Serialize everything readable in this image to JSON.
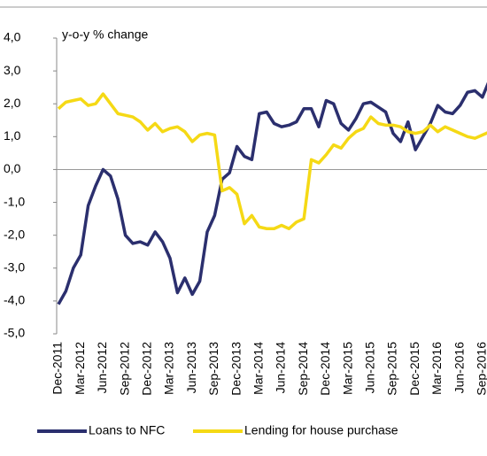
{
  "chart_data": {
    "type": "line",
    "y_label": "y-o-y % change",
    "categories": [
      "Dec-2011",
      null,
      null,
      "Mar-2012",
      null,
      null,
      "Jun-2012",
      null,
      null,
      "Sep-2012",
      null,
      null,
      "Dec-2012",
      null,
      null,
      "Mar-2013",
      null,
      null,
      "Jun-2013",
      null,
      null,
      "Sep-2013",
      null,
      null,
      "Dec-2013",
      null,
      null,
      "Mar-2014",
      null,
      null,
      "Jun-2014",
      null,
      null,
      "Sep-2014",
      null,
      null,
      "Dec-2014",
      null,
      null,
      "Mar-2015",
      null,
      null,
      "Jun-2015",
      null,
      null,
      "Sep-2015",
      null,
      null,
      "Dec-2015",
      null,
      null,
      "Mar-2016",
      null,
      null,
      "Jun-2016",
      null,
      null,
      "Sep-2016",
      null
    ],
    "series": [
      {
        "name": "Loans to NFC",
        "color": "#2b2f6e",
        "values": [
          -4.1,
          -3.7,
          -3.0,
          -2.6,
          -1.1,
          -0.5,
          0.0,
          -0.2,
          -0.9,
          -2.0,
          -2.25,
          -2.2,
          -2.3,
          -1.9,
          -2.2,
          -2.7,
          -3.75,
          -3.3,
          -3.8,
          -3.4,
          -1.9,
          -1.4,
          -0.3,
          -0.1,
          0.7,
          0.4,
          0.3,
          1.7,
          1.75,
          1.4,
          1.3,
          1.35,
          1.45,
          1.85,
          1.85,
          1.3,
          2.1,
          2.0,
          1.4,
          1.2,
          1.55,
          2.0,
          2.05,
          1.9,
          1.75,
          1.1,
          0.85,
          1.45,
          0.6,
          1.0,
          1.4,
          1.95,
          1.75,
          1.7,
          1.95,
          2.35,
          2.4,
          2.2,
          2.75
        ]
      },
      {
        "name": "Lending for house purchase",
        "color": "#f5d915",
        "values": [
          1.85,
          2.05,
          2.1,
          2.15,
          1.95,
          2.0,
          2.3,
          2.0,
          1.7,
          1.65,
          1.6,
          1.45,
          1.2,
          1.4,
          1.15,
          1.25,
          1.3,
          1.15,
          0.85,
          1.05,
          1.1,
          1.05,
          -0.65,
          -0.55,
          -0.75,
          -1.65,
          -1.4,
          -1.75,
          -1.8,
          -1.8,
          -1.7,
          -1.8,
          -1.6,
          -1.5,
          0.3,
          0.2,
          0.45,
          0.75,
          0.65,
          0.95,
          1.15,
          1.25,
          1.6,
          1.4,
          1.35,
          1.35,
          1.3,
          1.15,
          1.1,
          1.15,
          1.35,
          1.15,
          1.3,
          1.2,
          1.1,
          1.0,
          0.95,
          1.05,
          1.15
        ]
      }
    ],
    "ylim": [
      -5,
      4
    ],
    "yticks": [
      {
        "value": 4,
        "label": "4,0"
      },
      {
        "value": 3,
        "label": "3,0"
      },
      {
        "value": 2,
        "label": "2,0"
      },
      {
        "value": 1,
        "label": "1,0"
      },
      {
        "value": 0,
        "label": "0,0"
      },
      {
        "value": -1,
        "label": "-1,0"
      },
      {
        "value": -2,
        "label": "-2,0"
      },
      {
        "value": -3,
        "label": "-3,0"
      },
      {
        "value": -4,
        "label": "-4,0"
      },
      {
        "value": -5,
        "label": "-5,0"
      }
    ]
  }
}
